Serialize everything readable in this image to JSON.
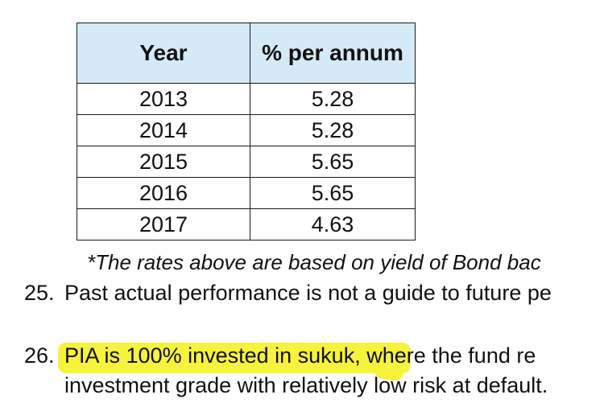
{
  "table": {
    "headers": [
      "Year",
      "% per annum"
    ],
    "rows": [
      [
        "2013",
        "5.28"
      ],
      [
        "2014",
        "5.28"
      ],
      [
        "2015",
        "5.65"
      ],
      [
        "2016",
        "5.65"
      ],
      [
        "2017",
        "4.63"
      ]
    ]
  },
  "footnote": "*The rates above are based on yield of Bond bac",
  "paragraphs": [
    {
      "number": "25.",
      "line1": "Past actual performance is not a guide to future pe"
    },
    {
      "number": "26.",
      "highlighted": "PIA is 100% invested in sukuk,",
      "rest": " where the fund re",
      "line2": "investment grade with relatively low risk at default."
    }
  ],
  "highlight_color": "#f7f23c",
  "header_bg": "#d4eaf6"
}
